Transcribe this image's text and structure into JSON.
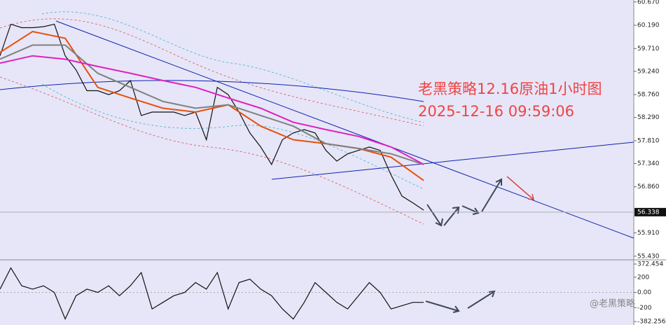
{
  "watermark": "@老黑策略",
  "chart_data": [
    {
      "type": "line",
      "title": "老黑策略12.16原油1小时图",
      "subtitle": "2025-12-16 09:59:06",
      "ylim": [
        55.34,
        60.71
      ],
      "yticks": [
        {
          "value": 60.67,
          "label": "60.670"
        },
        {
          "value": 60.19,
          "label": "60.190"
        },
        {
          "value": 59.71,
          "label": "59.710"
        },
        {
          "value": 59.24,
          "label": "59.240"
        },
        {
          "value": 58.76,
          "label": "58.760"
        },
        {
          "value": 58.29,
          "label": "58.290"
        },
        {
          "value": 57.81,
          "label": "57.810"
        },
        {
          "value": 57.34,
          "label": "57.340"
        },
        {
          "value": 56.86,
          "label": "56.860"
        },
        {
          "value": 55.91,
          "label": "55.910"
        },
        {
          "value": 55.43,
          "label": "55.430"
        }
      ],
      "price_marker": 56.338,
      "series": [
        {
          "color": "#111111",
          "values": [
            59.56,
            60.21,
            60.14,
            60.14,
            60.16,
            60.21,
            59.56,
            59.27,
            58.84,
            58.84,
            58.76,
            58.84,
            59.05,
            58.33,
            58.4,
            58.4,
            58.4,
            58.33,
            58.4,
            57.83,
            58.91,
            58.76,
            58.4,
            57.97,
            57.68,
            57.32,
            57.83,
            57.97,
            58.04,
            57.97,
            57.61,
            57.39,
            57.54,
            57.61,
            57.68,
            57.61,
            57.1,
            56.67,
            56.53,
            56.38
          ]
        },
        {
          "color": "#e8500a",
          "values": [
            59.63,
            60.06,
            59.92,
            58.91,
            58.69,
            58.48,
            58.4,
            58.55,
            58.11,
            57.83,
            57.75,
            57.65,
            57.47,
            56.99
          ]
        },
        {
          "color": "#808080",
          "values": [
            59.49,
            59.78,
            59.78,
            59.2,
            58.91,
            58.62,
            58.48,
            58.55,
            58.33,
            58.11,
            57.75,
            57.65,
            57.54,
            57.32
          ]
        },
        {
          "color": "#e020c0",
          "values": [
            59.41,
            59.56,
            59.49,
            59.34,
            59.2,
            59.05,
            58.91,
            58.69,
            58.48,
            58.19,
            58.04,
            57.9,
            57.68,
            57.32
          ]
        }
      ]
    },
    {
      "type": "line",
      "ylim": [
        -409,
        400
      ],
      "yticks": [
        372.454,
        200,
        {
          "value": 0,
          "label": "0.00"
        },
        -200,
        -382.256
      ],
      "series": [
        {
          "color": "#111111",
          "values": [
            43,
            322,
            87,
            43,
            87,
            0,
            -348,
            -43,
            43,
            0,
            87,
            -43,
            87,
            261,
            -217,
            -130,
            -43,
            0,
            130,
            43,
            261,
            -217,
            130,
            174,
            43,
            -43,
            -217,
            -348,
            -130,
            130,
            0,
            -130,
            -217,
            -43,
            130,
            0,
            -217,
            -174,
            -130,
            -130
          ]
        }
      ]
    }
  ]
}
